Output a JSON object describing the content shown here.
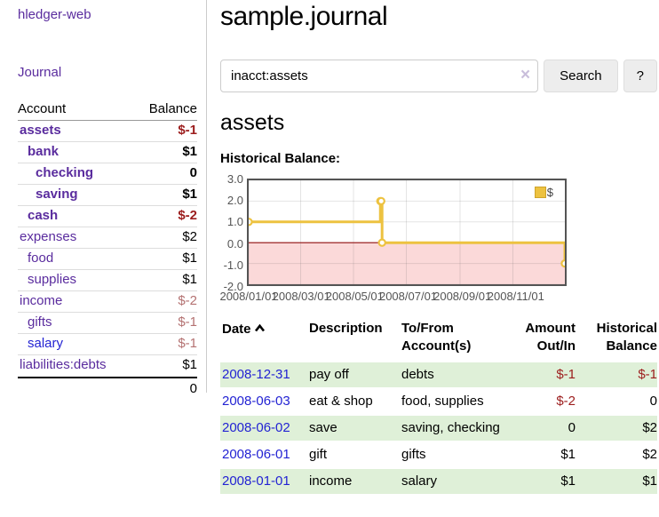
{
  "app": {
    "title": "hledger-web"
  },
  "sidebar": {
    "journal_link": "Journal",
    "accounts": {
      "header_account": "Account",
      "header_balance": "Balance",
      "rows": [
        {
          "account": "assets",
          "balance": "$-1"
        },
        {
          "account": "bank",
          "balance": "$1"
        },
        {
          "account": "checking",
          "balance": "0"
        },
        {
          "account": "saving",
          "balance": "$1"
        },
        {
          "account": "cash",
          "balance": "$-2"
        },
        {
          "account": "expenses",
          "balance": "$2"
        },
        {
          "account": "food",
          "balance": "$1"
        },
        {
          "account": "supplies",
          "balance": "$1"
        },
        {
          "account": "income",
          "balance": "$-2"
        },
        {
          "account": "gifts",
          "balance": "$-1"
        },
        {
          "account": "salary",
          "balance": "$-1"
        },
        {
          "account": "liabilities:debts",
          "balance": "$1"
        }
      ],
      "total": "0"
    }
  },
  "header": {
    "title": "sample.journal"
  },
  "search": {
    "value": "inacct:assets",
    "clear_icon": "×",
    "button_label": "Search",
    "help_label": "?"
  },
  "account_page": {
    "heading": "assets",
    "chart_title": "Historical Balance:"
  },
  "chart_data": {
    "type": "line",
    "line_style": "steps",
    "title": "Historical Balance",
    "series": [
      {
        "name": "$",
        "color": "#edc240",
        "points": [
          [
            "2008-01-01",
            1
          ],
          [
            "2008-06-01",
            2
          ],
          [
            "2008-06-02",
            2
          ],
          [
            "2008-06-03",
            0
          ],
          [
            "2008-12-31",
            -1
          ]
        ]
      }
    ],
    "x_range": [
      "2008-01-01",
      "2008-12-31"
    ],
    "ylim": [
      -2,
      3
    ],
    "ytick_labels": [
      "3.0",
      "2.0",
      "1.0",
      "0.0",
      "-1.0",
      "-2.0"
    ],
    "ytick_values": [
      3,
      2,
      1,
      0,
      -1,
      -2
    ],
    "xtick_labels": [
      "2008/01/01",
      "2008/03/01",
      "2008/05/01",
      "2008/07/01",
      "2008/09/01",
      "2008/11/01"
    ],
    "xtick_dates": [
      "2008-01-01",
      "2008-03-01",
      "2008-05-01",
      "2008-07-01",
      "2008-09-01",
      "2008-11-01"
    ],
    "grid": true,
    "legend": {
      "label": "$",
      "position": "top-right"
    },
    "negative_region_fill": "#fbd9d9",
    "zero_line_color": "#8f0e0e"
  },
  "register": {
    "headers": {
      "date": "Date",
      "description": "Description",
      "accounts": "To/From Account(s)",
      "amount": "Amount Out/In",
      "balance": "Historical Balance"
    },
    "rows": [
      {
        "date": "2008-12-31",
        "description": "pay off",
        "accounts": "debts",
        "amount": "$-1",
        "balance": "$-1"
      },
      {
        "date": "2008-06-03",
        "description": "eat & shop",
        "accounts": "food, supplies",
        "amount": "$-2",
        "balance": "0"
      },
      {
        "date": "2008-06-02",
        "description": "save",
        "accounts": "saving, checking",
        "amount": "0",
        "balance": "$2"
      },
      {
        "date": "2008-06-01",
        "description": "gift",
        "accounts": "gifts",
        "amount": "$1",
        "balance": "$2"
      },
      {
        "date": "2008-01-01",
        "description": "income",
        "accounts": "salary",
        "amount": "$1",
        "balance": "$1"
      }
    ]
  },
  "colors": {
    "link_purple": "#5a2c9e",
    "link_blue": "#2323d3",
    "negative_bold": "#9c1d1d",
    "negative_muted": "#b47272",
    "row_stripe_green": "#dff0d8",
    "series_gold": "#edc240",
    "negative_region_pink": "#fbd9d9",
    "zero_line_red": "#8f0e0e",
    "plot_border_gray": "#545454"
  }
}
